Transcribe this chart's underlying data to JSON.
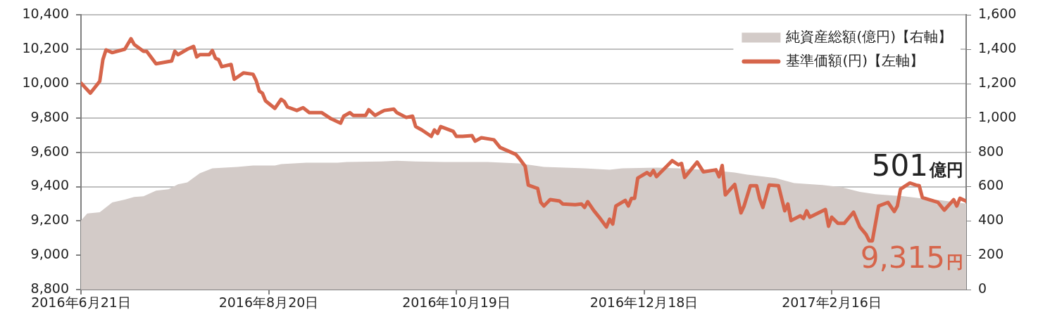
{
  "chart_data": {
    "type": "line",
    "xlim": [
      "2016-06-21",
      "2017-03-31"
    ],
    "xticks": [
      {
        "value": "2016-06-21",
        "label": "2016年6月21日"
      },
      {
        "value": "2016-08-20",
        "label": "2016年8月20日"
      },
      {
        "value": "2016-10-19",
        "label": "2016年10月19日"
      },
      {
        "value": "2016-12-18",
        "label": "2016年12月18日"
      },
      {
        "value": "2017-02-16",
        "label": "2017年2月16日"
      }
    ],
    "ylim": [
      8800,
      10400
    ],
    "yticks": [
      {
        "value": 8800,
        "label": "8,800"
      },
      {
        "value": 9000,
        "label": "9,000"
      },
      {
        "value": 9200,
        "label": "9,200"
      },
      {
        "value": 9400,
        "label": "9,400"
      },
      {
        "value": 9600,
        "label": "9,600"
      },
      {
        "value": 9800,
        "label": "9,800"
      },
      {
        "value": 10000,
        "label": "10,000"
      },
      {
        "value": 10200,
        "label": "10,200"
      },
      {
        "value": 10400,
        "label": "10,400"
      }
    ],
    "y2lim": [
      0,
      1600
    ],
    "y2ticks": [
      0,
      200,
      400,
      600,
      800,
      {
        "value": 1000,
        "label": "1,000"
      },
      {
        "value": 1200,
        "label": "1,200"
      },
      {
        "value": 1400,
        "label": "1,400"
      },
      {
        "value": 1600,
        "label": "1,600"
      }
    ],
    "grid": "y",
    "legend": "top right",
    "marker": "none",
    "line_style": "solid",
    "annotations": [
      "501億円",
      "9,315円"
    ],
    "series": [
      {
        "name": "純資産総額(億円)【右軸】",
        "type": "area",
        "axis": "y2",
        "color": "#d3cbc8",
        "x": [
          "2016-06-21",
          "2016-06-23",
          "2016-06-27",
          "2016-07-01",
          "2016-07-05",
          "2016-07-08",
          "2016-07-11",
          "2016-07-15",
          "2016-07-19",
          "2016-07-22",
          "2016-07-25",
          "2016-07-29",
          "2016-08-02",
          "2016-08-10",
          "2016-08-15",
          "2016-08-22",
          "2016-08-24",
          "2016-09-01",
          "2016-09-11",
          "2016-09-14",
          "2016-09-25",
          "2016-09-30",
          "2016-10-06",
          "2016-10-15",
          "2016-10-29",
          "2016-11-08",
          "2016-11-16",
          "2016-11-29",
          "2016-12-07",
          "2016-12-11",
          "2016-12-22",
          "2016-12-29",
          "2016-12-31",
          "2017-01-07",
          "2017-01-16",
          "2017-01-20",
          "2017-01-29",
          "2017-02-04",
          "2017-02-13",
          "2017-02-19",
          "2017-02-25",
          "2017-03-02",
          "2017-03-11",
          "2017-03-18",
          "2017-03-23",
          "2017-03-31"
        ],
        "values": [
          402,
          443,
          451,
          508,
          524,
          540,
          544,
          577,
          585,
          613,
          625,
          678,
          707,
          715,
          723,
          723,
          731,
          739,
          739,
          743,
          747,
          751,
          747,
          743,
          743,
          735,
          715,
          707,
          698,
          707,
          711,
          707,
          703,
          698,
          682,
          670,
          650,
          621,
          609,
          597,
          569,
          556,
          544,
          528,
          520,
          501
        ]
      },
      {
        "name": "基準価額(円)【左軸】",
        "type": "line",
        "color": "#d6654b",
        "x": [
          "2016-06-21",
          "2016-06-24",
          "2016-06-27",
          "2016-06-28",
          "2016-06-29",
          "2016-07-01",
          "2016-07-05",
          "2016-07-07",
          "2016-07-08",
          "2016-07-11",
          "2016-07-12",
          "2016-07-15",
          "2016-07-20",
          "2016-07-21",
          "2016-07-22",
          "2016-07-25",
          "2016-07-27",
          "2016-07-28",
          "2016-07-29",
          "2016-08-01",
          "2016-08-02",
          "2016-08-03",
          "2016-08-04",
          "2016-08-05",
          "2016-08-08",
          "2016-08-09",
          "2016-08-12",
          "2016-08-15",
          "2016-08-16",
          "2016-08-17",
          "2016-08-18",
          "2016-08-19",
          "2016-08-22",
          "2016-08-24",
          "2016-08-25",
          "2016-08-26",
          "2016-08-29",
          "2016-08-31",
          "2016-09-02",
          "2016-09-06",
          "2016-09-09",
          "2016-09-12",
          "2016-09-13",
          "2016-09-15",
          "2016-09-16",
          "2016-09-20",
          "2016-09-21",
          "2016-09-23",
          "2016-09-25",
          "2016-09-26",
          "2016-09-29",
          "2016-09-30",
          "2016-10-03",
          "2016-10-05",
          "2016-10-06",
          "2016-10-08",
          "2016-10-11",
          "2016-10-12",
          "2016-10-13",
          "2016-10-14",
          "2016-10-18",
          "2016-10-19",
          "2016-10-21",
          "2016-10-24",
          "2016-10-25",
          "2016-10-27",
          "2016-10-31",
          "2016-11-02",
          "2016-11-07",
          "2016-11-08",
          "2016-11-10",
          "2016-11-11",
          "2016-11-14",
          "2016-11-15",
          "2016-11-16",
          "2016-11-18",
          "2016-11-21",
          "2016-11-22",
          "2016-11-26",
          "2016-11-28",
          "2016-11-29",
          "2016-11-30",
          "2016-12-02",
          "2016-12-04",
          "2016-12-06",
          "2016-12-07",
          "2016-12-08",
          "2016-12-09",
          "2016-12-12",
          "2016-12-13",
          "2016-12-14",
          "2016-12-15",
          "2016-12-16",
          "2016-12-19",
          "2016-12-20",
          "2016-12-21",
          "2016-12-22",
          "2016-12-27",
          "2016-12-29",
          "2016-12-30",
          "2016-12-31",
          "2017-01-04",
          "2017-01-06",
          "2017-01-10",
          "2017-01-11",
          "2017-01-12",
          "2017-01-13",
          "2017-01-16",
          "2017-01-18",
          "2017-01-19",
          "2017-01-21",
          "2017-01-23",
          "2017-01-24",
          "2017-01-25",
          "2017-01-27",
          "2017-01-30",
          "2017-02-01",
          "2017-02-02",
          "2017-02-03",
          "2017-02-06",
          "2017-02-07",
          "2017-02-08",
          "2017-02-09",
          "2017-02-14",
          "2017-02-15",
          "2017-02-16",
          "2017-02-18",
          "2017-02-20",
          "2017-02-23",
          "2017-02-25",
          "2017-02-27",
          "2017-02-28",
          "2017-03-01",
          "2017-03-03",
          "2017-03-06",
          "2017-03-08",
          "2017-03-09",
          "2017-03-10",
          "2017-03-13",
          "2017-03-15",
          "2017-03-16",
          "2017-03-17",
          "2017-03-22",
          "2017-03-24",
          "2017-03-27",
          "2017-03-28",
          "2017-03-29",
          "2017-03-31"
        ],
        "values": [
          10004,
          9945,
          10014,
          10140,
          10197,
          10181,
          10201,
          10262,
          10229,
          10189,
          10189,
          10116,
          10132,
          10189,
          10169,
          10201,
          10217,
          10156,
          10169,
          10169,
          10193,
          10148,
          10140,
          10099,
          10112,
          10026,
          10063,
          10055,
          10018,
          9957,
          9945,
          9900,
          9856,
          9909,
          9896,
          9864,
          9844,
          9860,
          9831,
          9831,
          9795,
          9770,
          9811,
          9831,
          9815,
          9815,
          9848,
          9815,
          9835,
          9844,
          9852,
          9831,
          9803,
          9811,
          9750,
          9730,
          9693,
          9730,
          9710,
          9750,
          9722,
          9693,
          9693,
          9697,
          9665,
          9685,
          9673,
          9628,
          9588,
          9567,
          9519,
          9409,
          9389,
          9308,
          9287,
          9324,
          9316,
          9299,
          9295,
          9299,
          9279,
          9312,
          9259,
          9214,
          9165,
          9210,
          9182,
          9287,
          9320,
          9287,
          9332,
          9332,
          9450,
          9482,
          9466,
          9494,
          9458,
          9551,
          9527,
          9535,
          9454,
          9543,
          9486,
          9498,
          9458,
          9523,
          9352,
          9413,
          9247,
          9287,
          9405,
          9405,
          9328,
          9279,
          9409,
          9405,
          9259,
          9299,
          9202,
          9230,
          9214,
          9259,
          9222,
          9267,
          9169,
          9222,
          9186,
          9186,
          9251,
          9165,
          9121,
          9084,
          9084,
          9287,
          9308,
          9255,
          9287,
          9385,
          9421,
          9409,
          9405,
          9336,
          9308,
          9263,
          9324,
          9287,
          9332,
          9315
        ]
      }
    ]
  }
}
